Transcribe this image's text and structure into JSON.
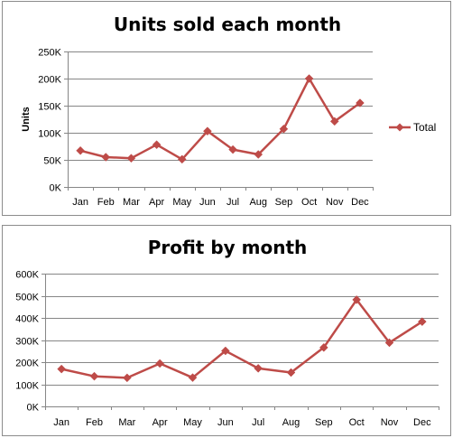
{
  "colors": {
    "series": "#be4b48",
    "grid": "#868686",
    "axis": "#868686",
    "text": "#000000",
    "border": "#8c8c8c"
  },
  "chart_data": [
    {
      "type": "line",
      "title": "Units sold each month",
      "xlabel": "",
      "ylabel": "Units",
      "ylim": [
        0,
        250000
      ],
      "y_ticks": [
        0,
        50000,
        100000,
        150000,
        200000,
        250000
      ],
      "y_tick_labels": [
        "0K",
        "50K",
        "100K",
        "150K",
        "200K",
        "250K"
      ],
      "grid": true,
      "legend_position": "right",
      "categories": [
        "Jan",
        "Feb",
        "Mar",
        "Apr",
        "May",
        "Jun",
        "Jul",
        "Aug",
        "Sep",
        "Oct",
        "Nov",
        "Dec"
      ],
      "series": [
        {
          "name": "Total",
          "marker": "diamond",
          "values": [
            67000,
            55000,
            53000,
            78000,
            51000,
            103000,
            69000,
            60000,
            107000,
            200000,
            121000,
            155000
          ]
        }
      ]
    },
    {
      "type": "line",
      "title": "Profit by month",
      "xlabel": "",
      "ylabel": "",
      "ylim": [
        0,
        600000
      ],
      "y_ticks": [
        0,
        100000,
        200000,
        300000,
        400000,
        500000,
        600000
      ],
      "y_tick_labels": [
        "0K",
        "100K",
        "200K",
        "300K",
        "400K",
        "500K",
        "600K"
      ],
      "grid": true,
      "legend_position": "none",
      "categories": [
        "Jan",
        "Feb",
        "Mar",
        "Apr",
        "May",
        "Jun",
        "Jul",
        "Aug",
        "Sep",
        "Oct",
        "Nov",
        "Dec"
      ],
      "series": [
        {
          "marker": "diamond",
          "values": [
            169000,
            136000,
            129000,
            194000,
            130000,
            251000,
            172000,
            153000,
            266000,
            482000,
            288000,
            383000
          ]
        }
      ]
    }
  ]
}
